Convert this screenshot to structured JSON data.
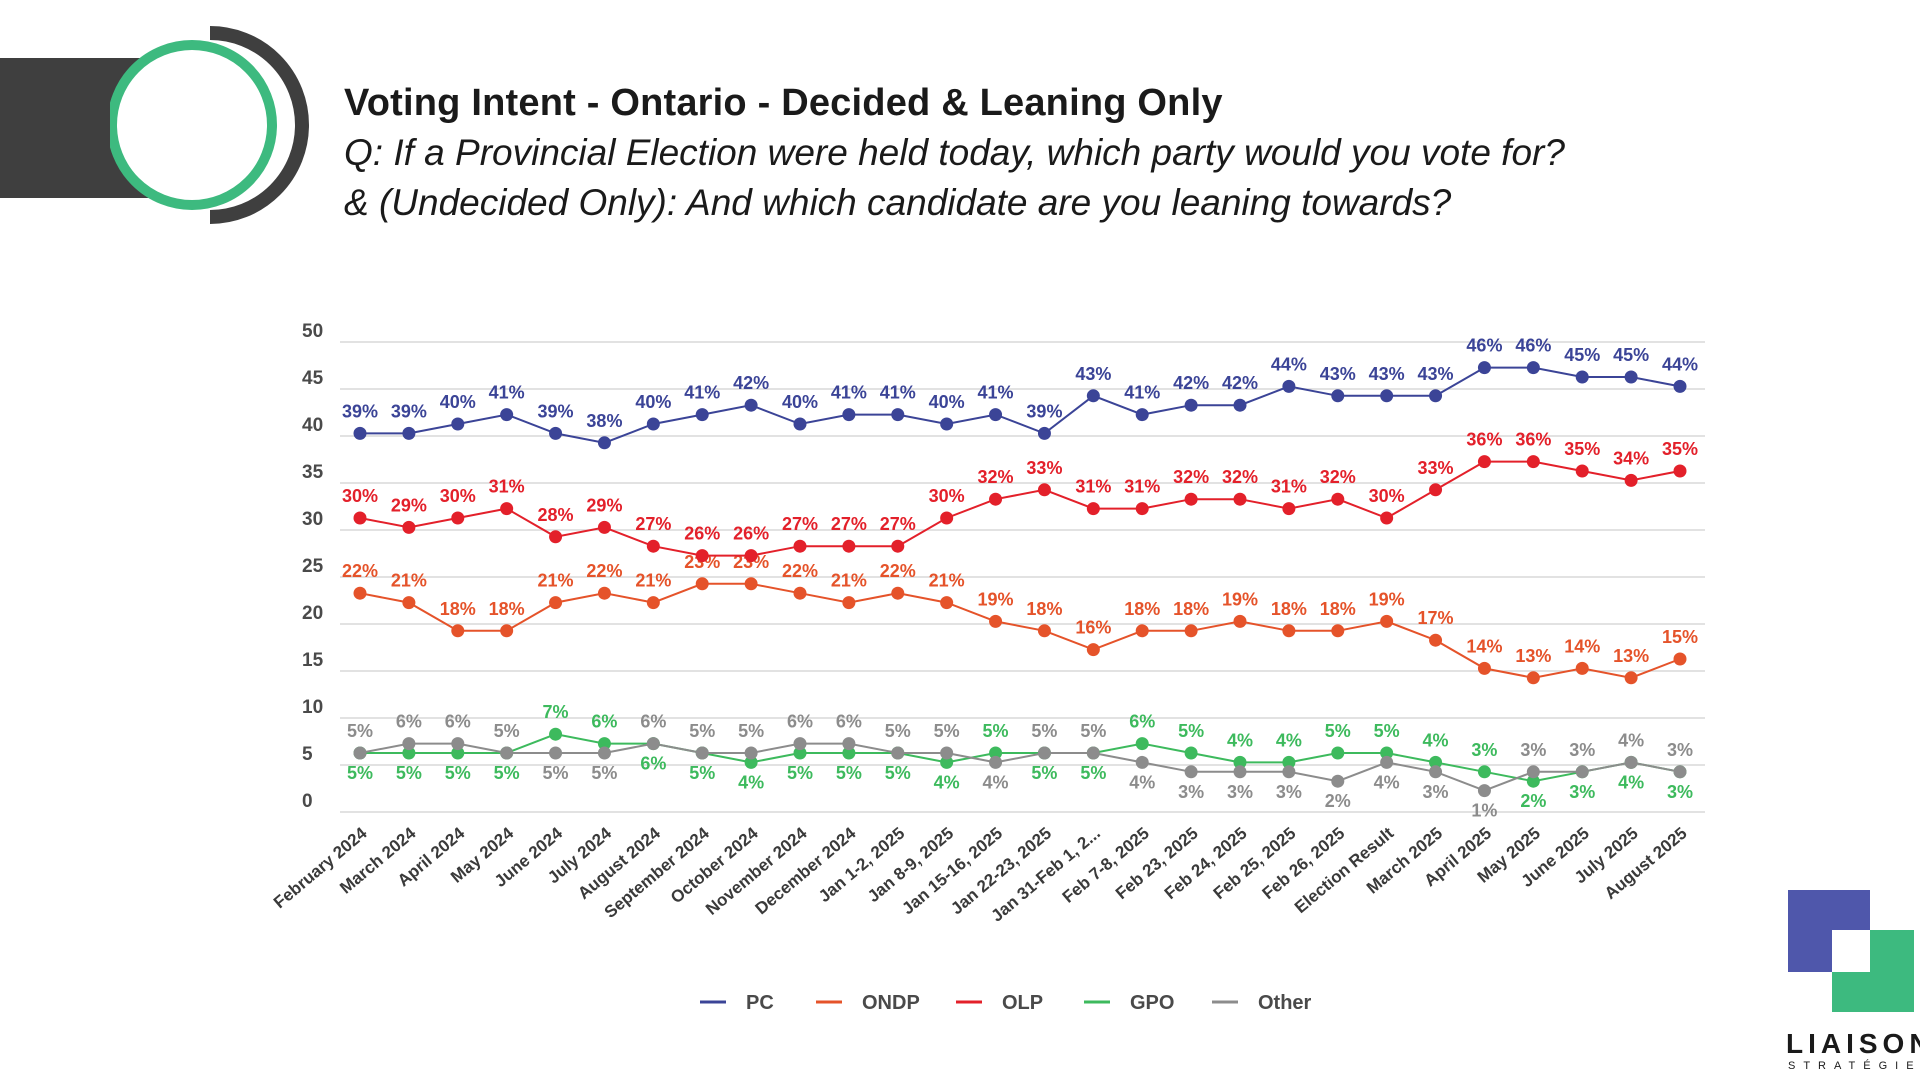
{
  "header": {
    "title": "Voting Intent - Ontario - Decided & Leaning Only",
    "subtitle_line1": "Q: If a Provincial Election were held today, which party would you vote for?",
    "subtitle_line2": "& (Undecided Only): And which candidate are you leaning towards?"
  },
  "brand": {
    "name": "LIAISON",
    "sub": "STRATÉGIES",
    "colors": {
      "dark": "#3f3f3f",
      "green": "#3dba7f",
      "blue": "#4f57ab"
    }
  },
  "chart_data": {
    "type": "line",
    "title": "Voting Intent - Ontario - Decided & Leaning Only",
    "xlabel": "",
    "ylabel": "",
    "ylim": [
      0,
      50
    ],
    "yticks": [
      0,
      5,
      10,
      15,
      20,
      25,
      30,
      35,
      40,
      45,
      50
    ],
    "grid": true,
    "legend_position": "bottom",
    "categories": [
      "February 2024",
      "March 2024",
      "April 2024",
      "May 2024",
      "June 2024",
      "July 2024",
      "August 2024",
      "September 2024",
      "October 2024",
      "November 2024",
      "December 2024",
      "Jan 1-2, 2025",
      "Jan 8-9, 2025",
      "Jan 15-16, 2025",
      "Jan 22-23, 2025",
      "Jan 31-Feb 1, 2...",
      "Feb 7-8, 2025",
      "Feb 23, 2025",
      "Feb 24, 2025",
      "Feb 25, 2025",
      "Feb 26, 2025",
      "Election Result",
      "March 2025",
      "April 2025",
      "May 2025",
      "June 2025",
      "July 2025",
      "August 2025"
    ],
    "series": [
      {
        "name": "PC",
        "color": "#3b4497",
        "label_pos": "above",
        "values": [
          39,
          39,
          40,
          41,
          39,
          38,
          40,
          41,
          42,
          40,
          41,
          41,
          40,
          41,
          39,
          43,
          41,
          42,
          42,
          44,
          43,
          43,
          43,
          46,
          46,
          45,
          45,
          44
        ]
      },
      {
        "name": "ONDP",
        "color": "#e5532a",
        "label_pos": "above",
        "values": [
          22,
          21,
          18,
          18,
          21,
          22,
          21,
          23,
          23,
          22,
          21,
          22,
          21,
          19,
          18,
          16,
          18,
          18,
          19,
          18,
          18,
          19,
          17,
          14,
          13,
          14,
          13,
          15
        ]
      },
      {
        "name": "OLP",
        "color": "#e3202a",
        "label_pos": "above",
        "values": [
          30,
          29,
          30,
          31,
          28,
          29,
          27,
          26,
          26,
          27,
          27,
          27,
          30,
          32,
          33,
          31,
          31,
          32,
          32,
          31,
          32,
          30,
          33,
          36,
          36,
          35,
          34,
          35
        ]
      },
      {
        "name": "GPO",
        "color": "#3dba5d",
        "label_pos": "alternate",
        "values": [
          5,
          5,
          5,
          5,
          7,
          6,
          6,
          5,
          4,
          5,
          5,
          5,
          4,
          5,
          5,
          5,
          6,
          5,
          4,
          4,
          5,
          5,
          4,
          3,
          2,
          3,
          4,
          3
        ]
      },
      {
        "name": "Other",
        "color": "#8c8c8c",
        "label_pos": "alternate",
        "values": [
          5,
          6,
          6,
          5,
          5,
          5,
          6,
          5,
          5,
          6,
          6,
          5,
          5,
          4,
          5,
          5,
          4,
          3,
          3,
          3,
          2,
          4,
          3,
          1,
          3,
          3,
          4,
          3
        ]
      }
    ]
  }
}
